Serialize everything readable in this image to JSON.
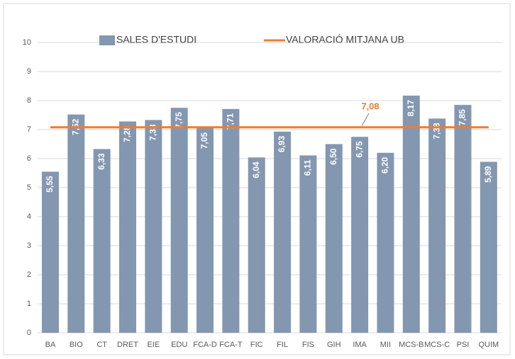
{
  "chart_data": {
    "type": "bar",
    "categories": [
      "BA",
      "BIO",
      "CT",
      "DRET",
      "EIE",
      "EDU",
      "FCA-D",
      "FCA-T",
      "FIC",
      "FIL",
      "FIS",
      "GIH",
      "IMA",
      "MII",
      "MCS-B",
      "MCS-C",
      "PSI",
      "QUIM"
    ],
    "series": [
      {
        "name": "SALES D'ESTUDI",
        "color": "#8497b0",
        "values": [
          5.55,
          7.52,
          6.33,
          7.28,
          7.33,
          7.75,
          7.05,
          7.71,
          6.04,
          6.93,
          6.11,
          6.5,
          6.75,
          6.2,
          8.17,
          7.38,
          7.85,
          5.89
        ],
        "value_labels": [
          "5,55",
          "7,52",
          "6,33",
          "7,28",
          "7,33",
          "7,75",
          "7,05",
          "7,71",
          "6,04",
          "6,93",
          "6,11",
          "6,50",
          "6,75",
          "6,20",
          "8,17",
          "7,38",
          "7,85",
          "5,89"
        ]
      }
    ],
    "reference_line": {
      "name": "VALORACIÓ MITJANA UB",
      "value": 7.08,
      "value_label": "7,08",
      "color": "#ed7d31"
    },
    "ylim": [
      0,
      10
    ],
    "yticks": [
      0,
      1,
      2,
      3,
      4,
      5,
      6,
      7,
      8,
      9,
      10
    ],
    "grid": true
  }
}
